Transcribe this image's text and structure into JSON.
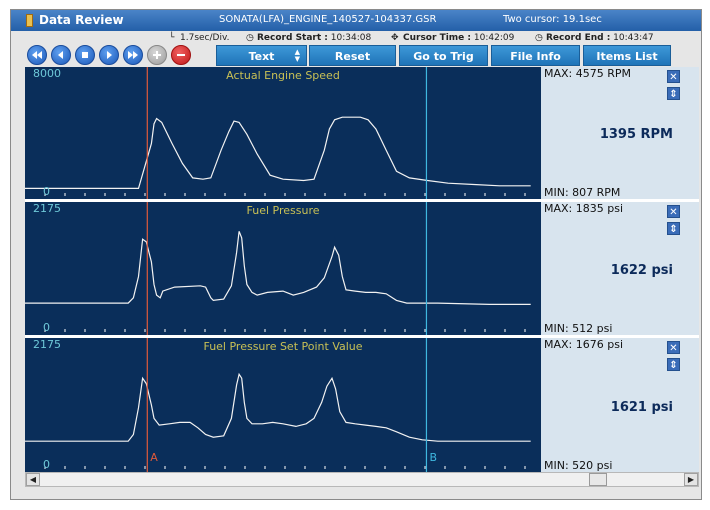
{
  "title": "Data Review",
  "file_name": "SONATA(LFA)_ENGINE_140527-104337.GSR",
  "cursor_mode": "Two cursor: 19.1sec",
  "info": {
    "time_div": "1.7sec/Div.",
    "record_start_label": "Record Start :",
    "record_start": "10:34:08",
    "cursor_time_label": "Cursor Time :",
    "cursor_time": "10:42:09",
    "record_end_label": "Record End :",
    "record_end": "10:43:47"
  },
  "toolbar": {
    "text_label": "Text",
    "reset_label": "Reset Min.Max",
    "trig_label": "Go to Trig",
    "fileinfo_label": "File Info",
    "items_label": "Items List"
  },
  "cursors": {
    "a_label": "A",
    "b_label": "B",
    "a_x_fraction": 0.237,
    "b_x_fraction": 0.778
  },
  "panels": [
    {
      "name": "Actual Engine Speed",
      "scale_max": "8000",
      "scale_min": "0",
      "max_text": "MAX:  4575 RPM",
      "min_text": "MIN:  807 RPM",
      "current": "1395 RPM",
      "trace": [
        [
          0,
          0.92
        ],
        [
          0.22,
          0.92
        ],
        [
          0.245,
          0.58
        ],
        [
          0.25,
          0.43
        ],
        [
          0.255,
          0.39
        ],
        [
          0.265,
          0.42
        ],
        [
          0.285,
          0.58
        ],
        [
          0.305,
          0.73
        ],
        [
          0.325,
          0.84
        ],
        [
          0.345,
          0.85
        ],
        [
          0.36,
          0.84
        ],
        [
          0.38,
          0.63
        ],
        [
          0.395,
          0.49
        ],
        [
          0.405,
          0.41
        ],
        [
          0.415,
          0.42
        ],
        [
          0.43,
          0.51
        ],
        [
          0.45,
          0.66
        ],
        [
          0.475,
          0.82
        ],
        [
          0.5,
          0.85
        ],
        [
          0.54,
          0.86
        ],
        [
          0.56,
          0.85
        ],
        [
          0.58,
          0.63
        ],
        [
          0.59,
          0.47
        ],
        [
          0.6,
          0.4
        ],
        [
          0.615,
          0.38
        ],
        [
          0.65,
          0.38
        ],
        [
          0.665,
          0.4
        ],
        [
          0.68,
          0.47
        ],
        [
          0.7,
          0.63
        ],
        [
          0.72,
          0.79
        ],
        [
          0.745,
          0.84
        ],
        [
          0.78,
          0.86
        ],
        [
          0.82,
          0.88
        ],
        [
          0.87,
          0.89
        ],
        [
          0.92,
          0.9
        ],
        [
          0.98,
          0.9
        ]
      ]
    },
    {
      "name": "Fuel Pressure",
      "scale_max": "2175",
      "scale_min": "0",
      "max_text": "MAX:  1835 psi",
      "min_text": "MIN:  512 psi",
      "current": "1622 psi",
      "trace": [
        [
          0,
          0.76
        ],
        [
          0.2,
          0.76
        ],
        [
          0.21,
          0.72
        ],
        [
          0.22,
          0.56
        ],
        [
          0.228,
          0.28
        ],
        [
          0.235,
          0.3
        ],
        [
          0.245,
          0.45
        ],
        [
          0.25,
          0.62
        ],
        [
          0.255,
          0.7
        ],
        [
          0.262,
          0.72
        ],
        [
          0.267,
          0.67
        ],
        [
          0.29,
          0.64
        ],
        [
          0.34,
          0.63
        ],
        [
          0.35,
          0.64
        ],
        [
          0.36,
          0.72
        ],
        [
          0.365,
          0.74
        ],
        [
          0.385,
          0.73
        ],
        [
          0.4,
          0.63
        ],
        [
          0.41,
          0.38
        ],
        [
          0.415,
          0.22
        ],
        [
          0.42,
          0.27
        ],
        [
          0.425,
          0.48
        ],
        [
          0.43,
          0.62
        ],
        [
          0.44,
          0.68
        ],
        [
          0.45,
          0.7
        ],
        [
          0.47,
          0.68
        ],
        [
          0.5,
          0.67
        ],
        [
          0.52,
          0.7
        ],
        [
          0.54,
          0.68
        ],
        [
          0.565,
          0.64
        ],
        [
          0.58,
          0.57
        ],
        [
          0.595,
          0.41
        ],
        [
          0.6,
          0.34
        ],
        [
          0.608,
          0.4
        ],
        [
          0.615,
          0.56
        ],
        [
          0.622,
          0.66
        ],
        [
          0.64,
          0.67
        ],
        [
          0.66,
          0.68
        ],
        [
          0.68,
          0.68
        ],
        [
          0.7,
          0.69
        ],
        [
          0.72,
          0.74
        ],
        [
          0.74,
          0.76
        ],
        [
          0.8,
          0.76
        ],
        [
          0.9,
          0.77
        ],
        [
          0.98,
          0.77
        ]
      ]
    },
    {
      "name": "Fuel Pressure Set Point Value",
      "scale_max": "2175",
      "scale_min": "0",
      "max_text": "MAX:  1676 psi",
      "min_text": "MIN:  520 psi",
      "current": "1621 psi",
      "trace": [
        [
          0,
          0.77
        ],
        [
          0.2,
          0.77
        ],
        [
          0.21,
          0.72
        ],
        [
          0.22,
          0.52
        ],
        [
          0.228,
          0.3
        ],
        [
          0.235,
          0.34
        ],
        [
          0.245,
          0.5
        ],
        [
          0.25,
          0.6
        ],
        [
          0.26,
          0.65
        ],
        [
          0.28,
          0.64
        ],
        [
          0.3,
          0.63
        ],
        [
          0.32,
          0.63
        ],
        [
          0.335,
          0.67
        ],
        [
          0.35,
          0.72
        ],
        [
          0.365,
          0.74
        ],
        [
          0.385,
          0.73
        ],
        [
          0.4,
          0.6
        ],
        [
          0.41,
          0.35
        ],
        [
          0.415,
          0.27
        ],
        [
          0.42,
          0.3
        ],
        [
          0.425,
          0.48
        ],
        [
          0.43,
          0.6
        ],
        [
          0.44,
          0.64
        ],
        [
          0.46,
          0.64
        ],
        [
          0.48,
          0.63
        ],
        [
          0.5,
          0.64
        ],
        [
          0.525,
          0.66
        ],
        [
          0.545,
          0.64
        ],
        [
          0.56,
          0.6
        ],
        [
          0.575,
          0.48
        ],
        [
          0.585,
          0.36
        ],
        [
          0.595,
          0.3
        ],
        [
          0.602,
          0.38
        ],
        [
          0.61,
          0.55
        ],
        [
          0.622,
          0.63
        ],
        [
          0.64,
          0.64
        ],
        [
          0.66,
          0.65
        ],
        [
          0.68,
          0.66
        ],
        [
          0.7,
          0.67
        ],
        [
          0.72,
          0.7
        ],
        [
          0.745,
          0.74
        ],
        [
          0.77,
          0.76
        ],
        [
          0.8,
          0.77
        ],
        [
          0.9,
          0.77
        ],
        [
          0.98,
          0.77
        ]
      ]
    }
  ],
  "colors": {
    "panel_bg": "#0a2e5a",
    "trace": "#f2f2f2",
    "cursor_a": "#e05a3a",
    "cursor_b": "#3fb8e0",
    "title_text": "#c8c055",
    "scale_text": "#6ec8d8"
  },
  "icons": [
    "rewind-icon",
    "back-icon",
    "stop-icon",
    "play-icon",
    "fast-forward-icon",
    "add-icon",
    "remove-icon",
    "close-icon",
    "reorder-icon"
  ]
}
